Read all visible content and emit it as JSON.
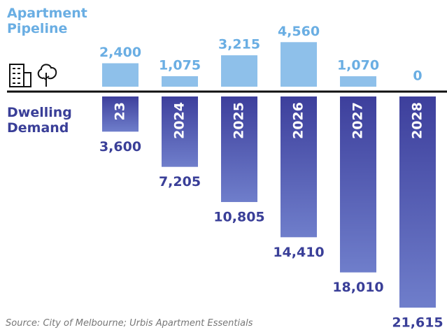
{
  "chart_data": {
    "type": "bar",
    "categories": [
      "23",
      "2024",
      "2025",
      "2026",
      "2027",
      "2028"
    ],
    "series": [
      {
        "name": "Apartment Pipeline",
        "color": "#8ec0ea",
        "label_color": "#6aaee3",
        "values": [
          2400,
          1075,
          3215,
          4560,
          1070,
          0
        ],
        "value_labels": [
          "2,400",
          "1,075",
          "3,215",
          "4,560",
          "1,070",
          "0"
        ]
      },
      {
        "name": "Dwelling Demand",
        "color": "#4a4fae",
        "label_color": "#3a3f98",
        "values": [
          3600,
          7205,
          10805,
          14410,
          18010,
          21615
        ],
        "value_labels": [
          "3,600",
          "7,205",
          "10,805",
          "14,410",
          "18,010",
          "21,615"
        ]
      }
    ],
    "source": "Source: City of Melbourne; Urbis Apartment Essentials"
  }
}
